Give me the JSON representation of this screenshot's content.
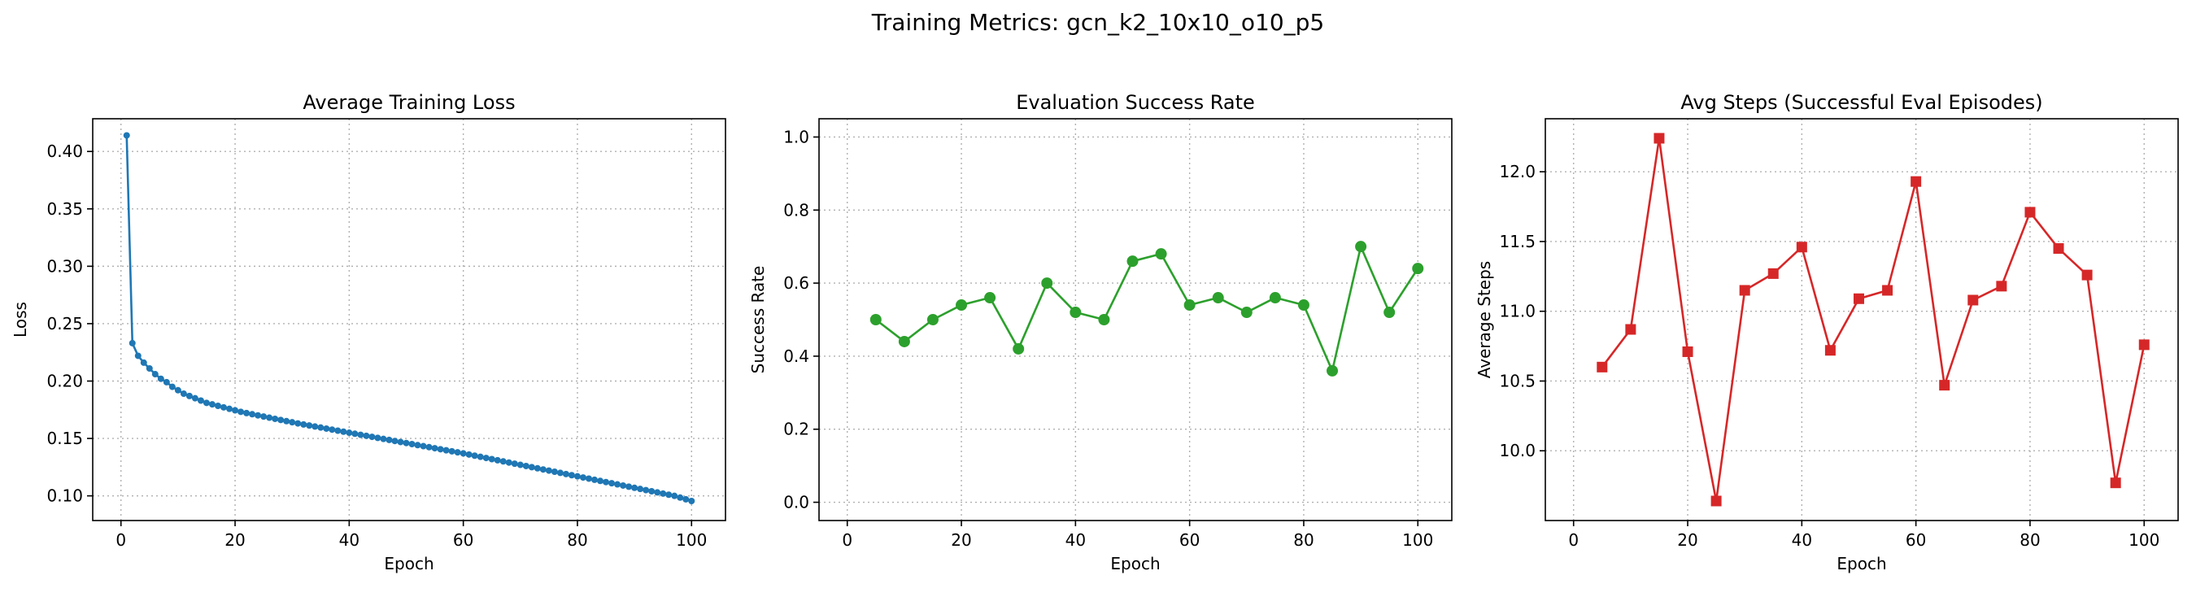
{
  "figure_title": "Training Metrics: gcn_k2_10x10_o10_p5",
  "chart_data": [
    {
      "type": "line",
      "title": "Average Training Loss",
      "xlabel": "Epoch",
      "ylabel": "Loss",
      "xlim": [
        -4.95,
        105.95
      ],
      "ylim": [
        0.0785,
        0.4285
      ],
      "xticks": [
        0,
        20,
        40,
        60,
        80,
        100
      ],
      "yticks": [
        0.1,
        0.15,
        0.2,
        0.25,
        0.3,
        0.35,
        0.4
      ],
      "tick_decimals": 2,
      "grid": true,
      "color": "#1f77b4",
      "marker": "circle",
      "series": [
        {
          "x": [
            1,
            2,
            3,
            4,
            5,
            6,
            7,
            8,
            9,
            10,
            11,
            12,
            13,
            14,
            15,
            16,
            17,
            18,
            19,
            20,
            21,
            22,
            23,
            24,
            25,
            26,
            27,
            28,
            29,
            30,
            31,
            32,
            33,
            34,
            35,
            36,
            37,
            38,
            39,
            40,
            41,
            42,
            43,
            44,
            45,
            46,
            47,
            48,
            49,
            50,
            51,
            52,
            53,
            54,
            55,
            56,
            57,
            58,
            59,
            60,
            61,
            62,
            63,
            64,
            65,
            66,
            67,
            68,
            69,
            70,
            71,
            72,
            73,
            74,
            75,
            76,
            77,
            78,
            79,
            80,
            81,
            82,
            83,
            84,
            85,
            86,
            87,
            88,
            89,
            90,
            91,
            92,
            93,
            94,
            95,
            96,
            97,
            98,
            99,
            100
          ],
          "y": [
            0.414,
            0.233,
            0.222,
            0.216,
            0.211,
            0.206,
            0.202,
            0.199,
            0.195,
            0.192,
            0.189,
            0.187,
            0.185,
            0.183,
            0.181,
            0.1797,
            0.1784,
            0.1771,
            0.1758,
            0.1745,
            0.1732,
            0.1721,
            0.1711,
            0.1701,
            0.1691,
            0.1681,
            0.1671,
            0.1661,
            0.1651,
            0.1641,
            0.1631,
            0.1622,
            0.1613,
            0.1604,
            0.1595,
            0.1586,
            0.1577,
            0.1568,
            0.1559,
            0.155,
            0.1541,
            0.1532,
            0.1523,
            0.1514,
            0.1505,
            0.1496,
            0.1487,
            0.1478,
            0.1469,
            0.146,
            0.1451,
            0.1442,
            0.1433,
            0.1424,
            0.1415,
            0.1406,
            0.1397,
            0.1388,
            0.1379,
            0.137,
            0.136,
            0.135,
            0.134,
            0.133,
            0.132,
            0.131,
            0.13,
            0.129,
            0.128,
            0.127,
            0.126,
            0.125,
            0.124,
            0.123,
            0.122,
            0.121,
            0.12,
            0.119,
            0.118,
            0.117,
            0.116,
            0.115,
            0.114,
            0.113,
            0.112,
            0.111,
            0.11,
            0.109,
            0.108,
            0.107,
            0.106,
            0.105,
            0.104,
            0.103,
            0.102,
            0.101,
            0.1,
            0.0985,
            0.097,
            0.0955
          ]
        }
      ]
    },
    {
      "type": "line",
      "title": "Evaluation Success Rate",
      "xlabel": "Epoch",
      "ylabel": "Success Rate",
      "xlim": [
        -4.95,
        105.95
      ],
      "ylim": [
        -0.05,
        1.05
      ],
      "xticks": [
        0,
        20,
        40,
        60,
        80,
        100
      ],
      "yticks": [
        0.0,
        0.2,
        0.4,
        0.6,
        0.8,
        1.0
      ],
      "tick_decimals": 1,
      "grid": true,
      "color": "#2ca02c",
      "marker": "circle",
      "series": [
        {
          "x": [
            5,
            10,
            15,
            20,
            25,
            30,
            35,
            40,
            45,
            50,
            55,
            60,
            65,
            70,
            75,
            80,
            85,
            90,
            95,
            100
          ],
          "y": [
            0.5,
            0.44,
            0.5,
            0.54,
            0.56,
            0.42,
            0.6,
            0.52,
            0.5,
            0.66,
            0.68,
            0.54,
            0.56,
            0.52,
            0.56,
            0.54,
            0.36,
            0.7,
            0.52,
            0.64
          ]
        }
      ]
    },
    {
      "type": "line",
      "title": "Avg Steps (Successful Eval Episodes)",
      "xlabel": "Epoch",
      "ylabel": "Average Steps",
      "xlim": [
        -4.95,
        105.95
      ],
      "ylim": [
        9.5,
        12.38
      ],
      "xticks": [
        0,
        20,
        40,
        60,
        80,
        100
      ],
      "yticks": [
        10.0,
        10.5,
        11.0,
        11.5,
        12.0
      ],
      "tick_decimals": 1,
      "grid": true,
      "color": "#d62728",
      "marker": "square",
      "series": [
        {
          "x": [
            5,
            10,
            15,
            20,
            25,
            30,
            35,
            40,
            45,
            50,
            55,
            60,
            65,
            70,
            75,
            80,
            85,
            90,
            95,
            100
          ],
          "y": [
            10.6,
            10.87,
            12.24,
            10.71,
            9.64,
            11.15,
            11.27,
            11.46,
            10.72,
            11.09,
            11.15,
            11.93,
            10.47,
            11.08,
            11.18,
            11.71,
            11.45,
            11.26,
            9.77,
            10.76
          ]
        }
      ]
    }
  ]
}
